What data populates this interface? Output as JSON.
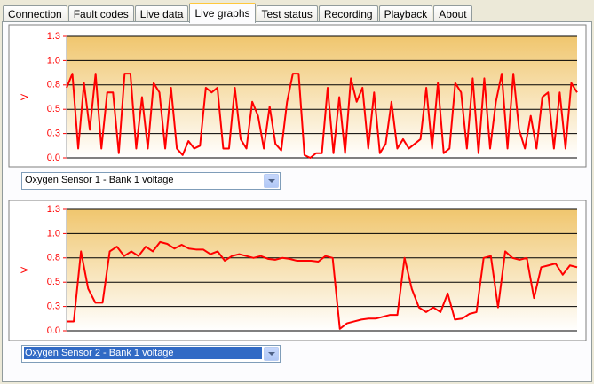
{
  "tabs": [
    "Connection",
    "Fault codes",
    "Live data",
    "Live graphs",
    "Test status",
    "Recording",
    "Playback",
    "About"
  ],
  "active_tab": "Live graphs",
  "chart_data": [
    {
      "type": "line",
      "y_label": "V",
      "color": "#ff0000",
      "grid": true,
      "ylim": [
        0,
        1.3
      ],
      "yticks": [
        {
          "value": 0,
          "label": "0.0"
        },
        {
          "value": 0.26,
          "label": "0.3"
        },
        {
          "value": 0.52,
          "label": "0.5"
        },
        {
          "value": 0.78,
          "label": "0.8"
        },
        {
          "value": 1.04,
          "label": "1.0"
        },
        {
          "value": 1.3,
          "label": "1.3"
        }
      ],
      "values": [
        0.75,
        0.9,
        0.1,
        0.8,
        0.3,
        0.9,
        0.1,
        0.7,
        0.7,
        0.05,
        0.9,
        0.9,
        0.1,
        0.65,
        0.1,
        0.8,
        0.7,
        0.1,
        0.75,
        0.1,
        0.03,
        0.18,
        0.1,
        0.13,
        0.75,
        0.7,
        0.75,
        0.1,
        0.1,
        0.75,
        0.2,
        0.1,
        0.6,
        0.45,
        0.1,
        0.55,
        0.15,
        0.08,
        0.6,
        0.9,
        0.9,
        0.03,
        0.0,
        0.05,
        0.05,
        0.75,
        0.05,
        0.65,
        0.05,
        0.85,
        0.6,
        0.75,
        0.1,
        0.7,
        0.05,
        0.15,
        0.6,
        0.1,
        0.2,
        0.1,
        0.15,
        0.2,
        0.75,
        0.1,
        0.8,
        0.05,
        0.1,
        0.8,
        0.7,
        0.1,
        0.85,
        0.05,
        0.85,
        0.1,
        0.6,
        0.9,
        0.1,
        0.9,
        0.3,
        0.1,
        0.45,
        0.1,
        0.65,
        0.7,
        0.1,
        0.7,
        0.1,
        0.8,
        0.7
      ]
    },
    {
      "type": "line",
      "y_label": "V",
      "color": "#ff0000",
      "grid": true,
      "ylim": [
        0,
        1.3
      ],
      "yticks": [
        {
          "value": 0,
          "label": "0.0"
        },
        {
          "value": 0.26,
          "label": "0.3"
        },
        {
          "value": 0.52,
          "label": "0.5"
        },
        {
          "value": 0.78,
          "label": "0.8"
        },
        {
          "value": 1.04,
          "label": "1.0"
        },
        {
          "value": 1.3,
          "label": "1.3"
        }
      ],
      "values": [
        0.1,
        0.1,
        0.85,
        0.45,
        0.3,
        0.3,
        0.85,
        0.9,
        0.8,
        0.85,
        0.8,
        0.9,
        0.85,
        0.95,
        0.93,
        0.88,
        0.92,
        0.88,
        0.87,
        0.87,
        0.82,
        0.85,
        0.75,
        0.8,
        0.82,
        0.8,
        0.78,
        0.8,
        0.77,
        0.76,
        0.78,
        0.77,
        0.75,
        0.75,
        0.75,
        0.74,
        0.8,
        0.78,
        0.02,
        0.08,
        0.1,
        0.12,
        0.13,
        0.13,
        0.15,
        0.17,
        0.17,
        0.78,
        0.45,
        0.25,
        0.2,
        0.25,
        0.2,
        0.4,
        0.12,
        0.13,
        0.18,
        0.2,
        0.78,
        0.8,
        0.25,
        0.85,
        0.78,
        0.76,
        0.78,
        0.35,
        0.68,
        0.7,
        0.72,
        0.6,
        0.7,
        0.68
      ]
    }
  ],
  "selectors": [
    {
      "label": "Oxygen Sensor 1 - Bank 1 voltage",
      "focused": false
    },
    {
      "label": "Oxygen Sensor 2 - Bank 1 voltage",
      "focused": true
    }
  ]
}
